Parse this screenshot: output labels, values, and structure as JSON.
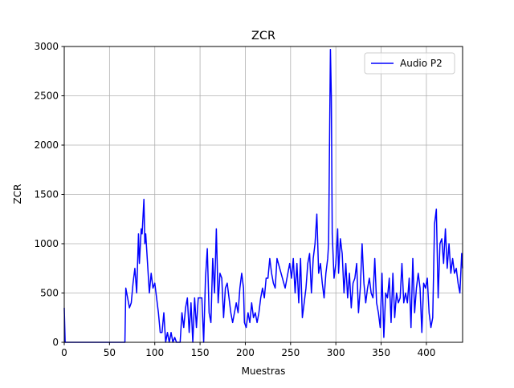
{
  "chart_data": {
    "type": "line",
    "title": "ZCR",
    "xlabel": "Muestras",
    "ylabel": "ZCR",
    "x": [
      0,
      1,
      67,
      68,
      70,
      72,
      74,
      76,
      78,
      80,
      82,
      83,
      85,
      86,
      88,
      89,
      90,
      92,
      94,
      96,
      98,
      100,
      102,
      104,
      106,
      108,
      110,
      112,
      114,
      116,
      118,
      120,
      122,
      124,
      128,
      130,
      132,
      134,
      136,
      138,
      140,
      142,
      144,
      146,
      148,
      150,
      152,
      154,
      156,
      158,
      160,
      162,
      164,
      166,
      168,
      170,
      172,
      174,
      176,
      178,
      180,
      182,
      184,
      186,
      188,
      190,
      192,
      194,
      196,
      198,
      199,
      201,
      203,
      205,
      207,
      209,
      211,
      213,
      215,
      217,
      219,
      221,
      223,
      225,
      227,
      229,
      231,
      233,
      235,
      238,
      241,
      244,
      247,
      249,
      251,
      253,
      255,
      257,
      259,
      261,
      263,
      265,
      267,
      269,
      271,
      273,
      275,
      277,
      279,
      281,
      283,
      285,
      287,
      289,
      291,
      292,
      293,
      294,
      295,
      296,
      298,
      300,
      302,
      303,
      305,
      307,
      309,
      311,
      313,
      315,
      317,
      319,
      321,
      323,
      325,
      327,
      329,
      331,
      333,
      335,
      337,
      339,
      341,
      343,
      345,
      347,
      349,
      351,
      353,
      355,
      357,
      359,
      361,
      363,
      365,
      367,
      369,
      371,
      373,
      375,
      377,
      379,
      381,
      383,
      385,
      387,
      389,
      391,
      393,
      395,
      397,
      399,
      401,
      403,
      405,
      407,
      409,
      411,
      413,
      415,
      417,
      419,
      421,
      423,
      425,
      427,
      429,
      431,
      433,
      435,
      437,
      439,
      440
    ],
    "series": [
      {
        "name": "Audio P2",
        "color": "#0000ff",
        "values": [
          350,
          0,
          0,
          550,
          450,
          350,
          400,
          600,
          750,
          500,
          1100,
          800,
          1150,
          1100,
          1450,
          1000,
          1100,
          800,
          500,
          700,
          550,
          600,
          450,
          300,
          100,
          100,
          300,
          0,
          100,
          0,
          100,
          0,
          50,
          0,
          0,
          300,
          150,
          350,
          450,
          100,
          400,
          0,
          450,
          150,
          450,
          450,
          450,
          0,
          650,
          950,
          300,
          200,
          850,
          500,
          1150,
          400,
          700,
          650,
          250,
          550,
          600,
          450,
          300,
          200,
          300,
          400,
          300,
          550,
          700,
          550,
          200,
          150,
          300,
          200,
          400,
          250,
          300,
          200,
          300,
          450,
          550,
          450,
          650,
          650,
          850,
          700,
          600,
          550,
          850,
          750,
          650,
          550,
          700,
          800,
          650,
          850,
          500,
          800,
          400,
          850,
          250,
          400,
          550,
          800,
          900,
          500,
          850,
          1000,
          1300,
          700,
          800,
          600,
          450,
          700,
          850,
          1000,
          2000,
          2970,
          2500,
          1100,
          650,
          800,
          1150,
          700,
          1050,
          900,
          500,
          800,
          450,
          700,
          350,
          600,
          650,
          800,
          300,
          550,
          1000,
          600,
          400,
          550,
          650,
          500,
          450,
          850,
          400,
          300,
          150,
          700,
          50,
          500,
          450,
          650,
          200,
          700,
          250,
          500,
          400,
          450,
          800,
          400,
          500,
          400,
          650,
          150,
          850,
          300,
          550,
          700,
          550,
          100,
          600,
          550,
          650,
          300,
          150,
          250,
          1200,
          1350,
          450,
          1000,
          1050,
          800,
          1150,
          750,
          1000,
          700,
          850,
          700,
          750,
          600,
          500,
          900,
          750
        ]
      }
    ],
    "xlim": [
      0,
      440
    ],
    "ylim": [
      0,
      3000
    ],
    "xticks": [
      0,
      50,
      100,
      150,
      200,
      250,
      300,
      350,
      400
    ],
    "yticks": [
      0,
      500,
      1000,
      1500,
      2000,
      2500,
      3000
    ],
    "grid": true,
    "legend": "upper right"
  }
}
